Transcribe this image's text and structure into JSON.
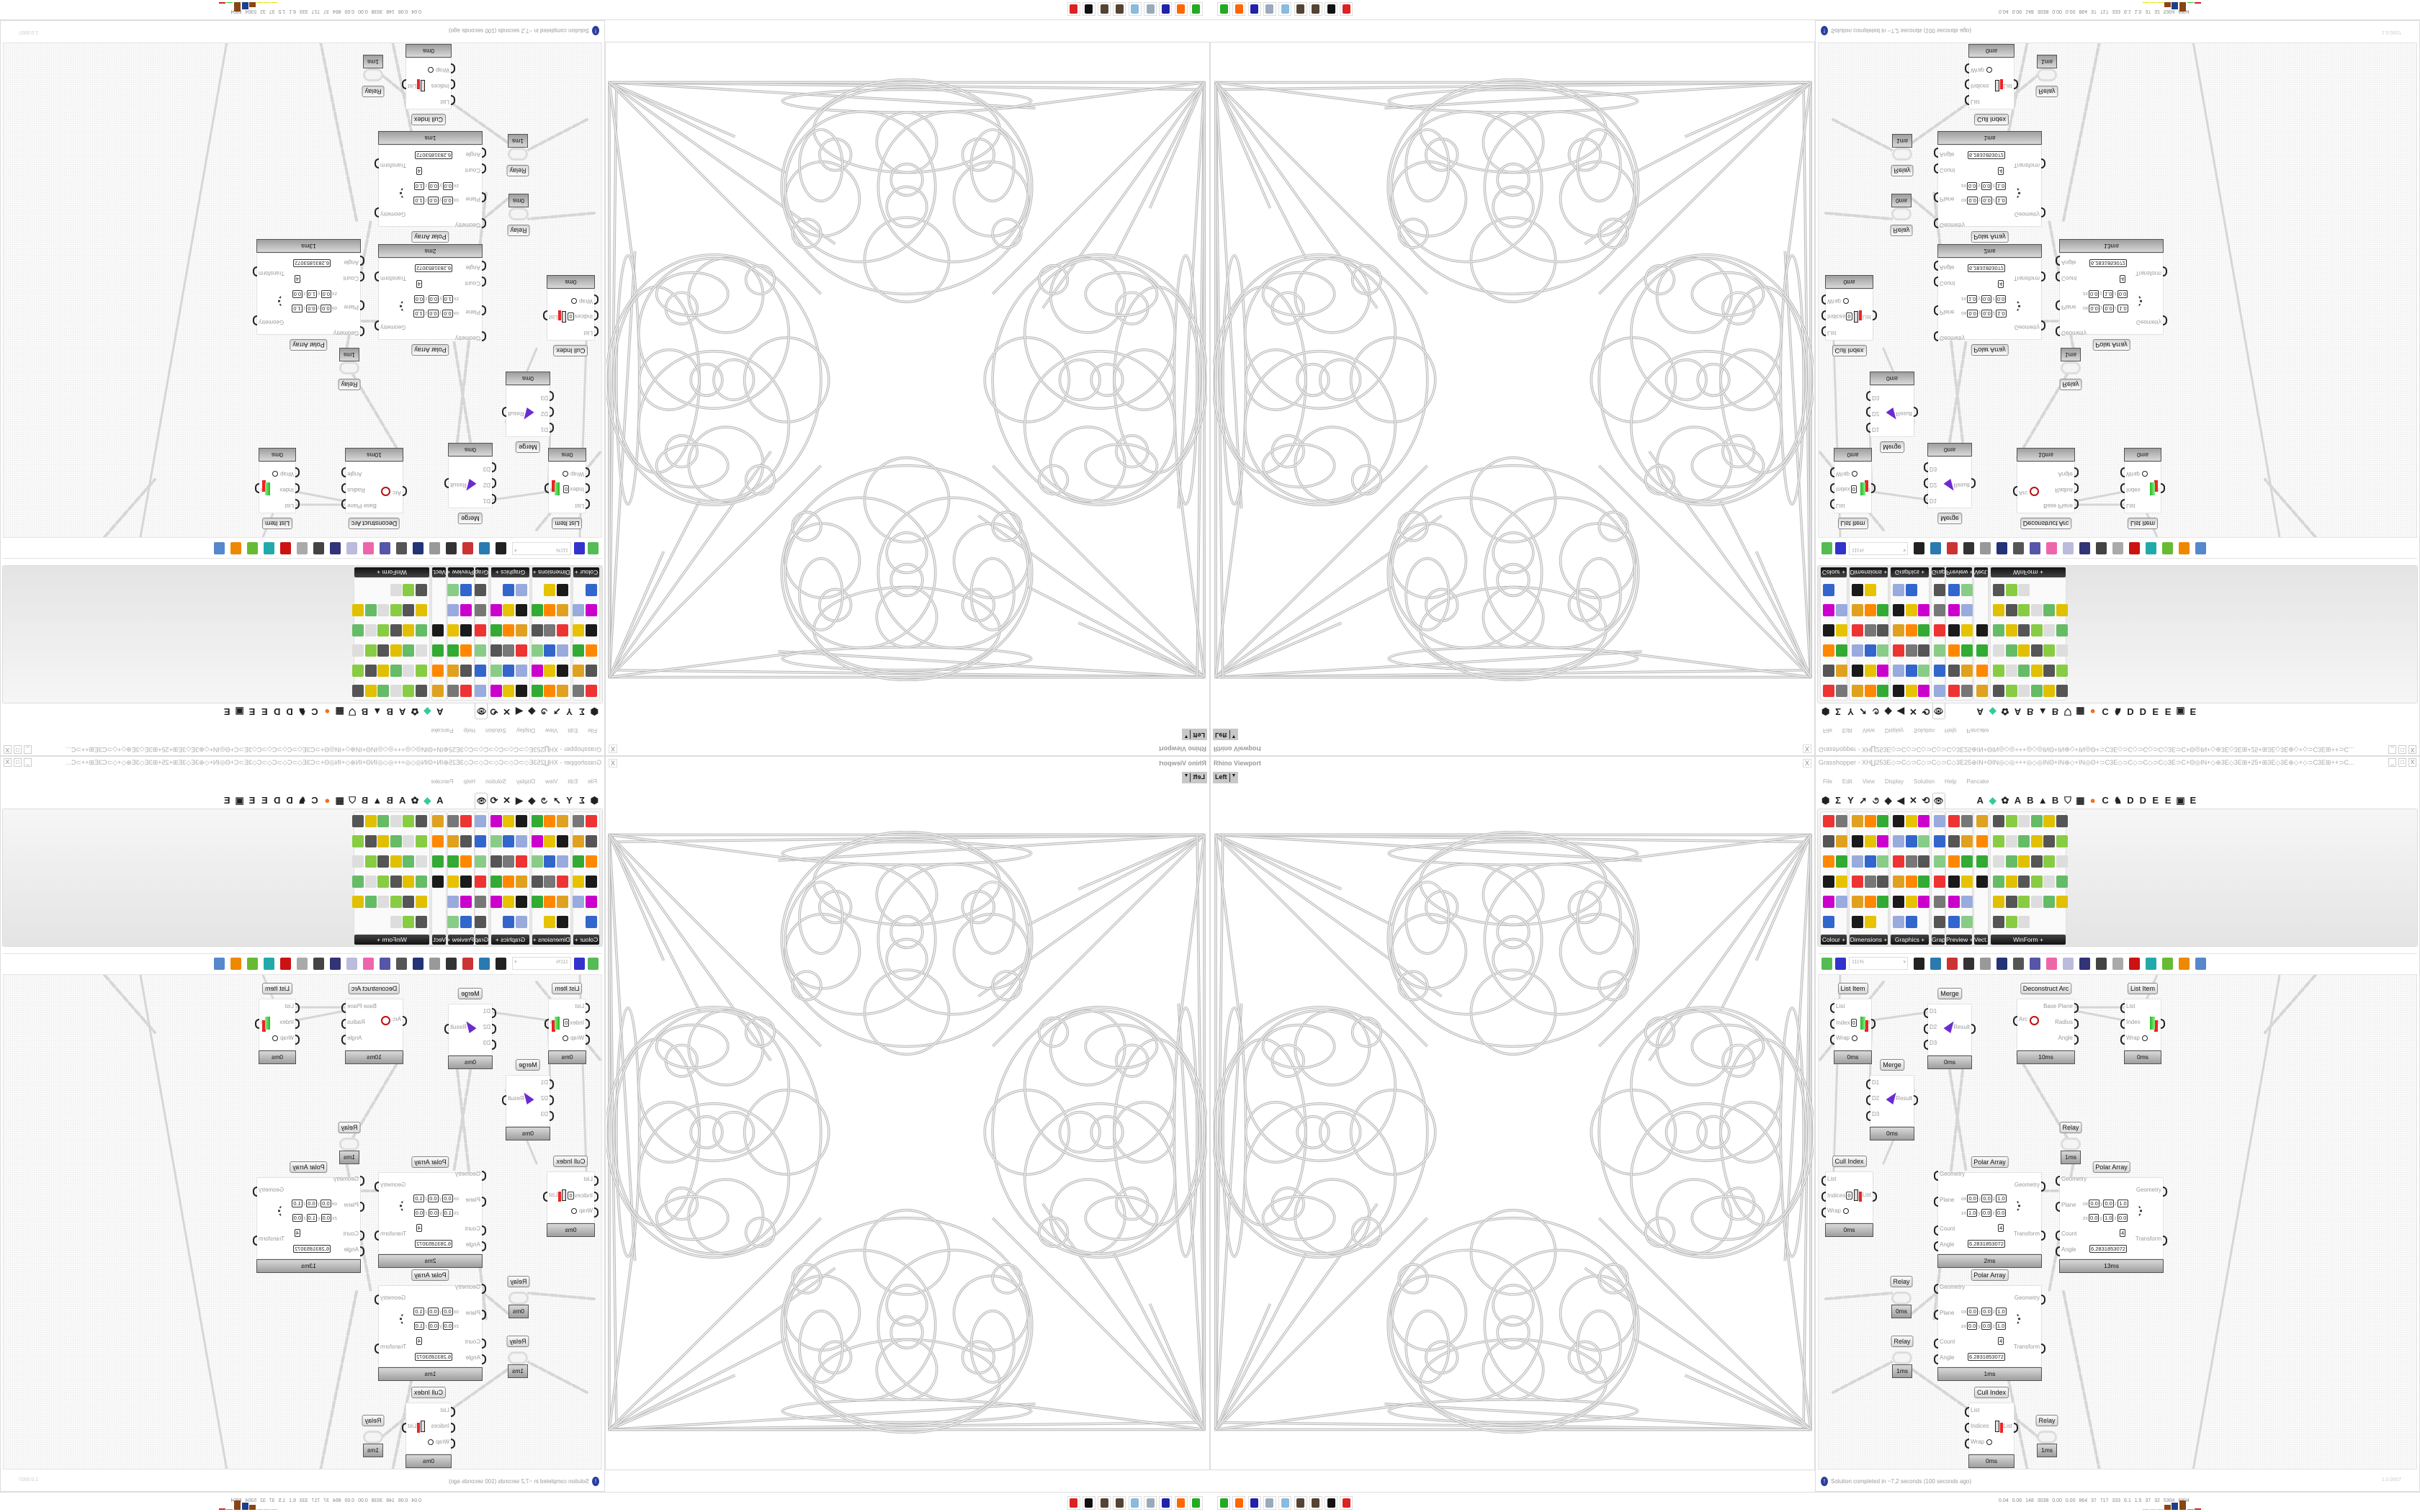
{
  "viewport": {
    "title": "Rhino Viewport",
    "close_label": "X",
    "view_name": "Left",
    "view_dropdown": "▼"
  },
  "grasshopper": {
    "title": "Grasshopper - XH∐253E◇⊃C◇⊃C◇⊃C◇⊃C◇3E25⊕IN+ΘIN◎◇◎+++◎◇◎INΘ+IN⊕◇+IN◎Θ+⊃C3E◇⊃C◇⊃C◇⊃C◇3E⊃C+Θ◎IN+◇⊕3E◇3E⊞+25+⊞3E◇3E⊕◇+◇⊃C3E⊞++⊃C...",
    "window_buttons": [
      "_",
      "□",
      "X"
    ],
    "menu": [
      "File",
      "Edit",
      "View",
      "Display",
      "Solution",
      "Help",
      "Pancake"
    ],
    "tabs": [
      {
        "icon": "params-icon",
        "glyph": "⬢"
      },
      {
        "icon": "maths-icon",
        "glyph": "Σ"
      },
      {
        "icon": "sets-icon",
        "glyph": "Y"
      },
      {
        "icon": "vector-icon",
        "glyph": "➚"
      },
      {
        "icon": "curve-icon",
        "glyph": "૭"
      },
      {
        "icon": "surface-icon",
        "glyph": "◆"
      },
      {
        "icon": "mesh-icon",
        "glyph": "◀"
      },
      {
        "icon": "intersect-icon",
        "glyph": "✕"
      },
      {
        "icon": "transform-icon",
        "glyph": "⟲"
      },
      {
        "icon": "display-eye-icon",
        "glyph": "👁",
        "active": true
      },
      {
        "icon": "plugin-a-icon",
        "glyph": "A"
      },
      {
        "icon": "green-gem-icon",
        "glyph": "◆"
      },
      {
        "icon": "flower-icon",
        "glyph": "✿"
      },
      {
        "icon": "plugin-a2-icon",
        "glyph": "A"
      },
      {
        "icon": "plugin-b-icon",
        "glyph": "B"
      },
      {
        "icon": "mountain-icon",
        "glyph": "▲"
      },
      {
        "icon": "plugin-b2-icon",
        "glyph": "B"
      },
      {
        "icon": "shield-icon",
        "glyph": "⛉"
      },
      {
        "icon": "grid-icon",
        "glyph": "▦"
      },
      {
        "icon": "orange-circle-icon",
        "glyph": "●"
      },
      {
        "icon": "plugin-c-icon",
        "glyph": "C"
      },
      {
        "icon": "bird-icon",
        "glyph": "♞"
      },
      {
        "icon": "plugin-d-icon",
        "glyph": "D"
      },
      {
        "icon": "plugin-d2-icon",
        "glyph": "D"
      },
      {
        "icon": "plugin-e-icon",
        "glyph": "E"
      },
      {
        "icon": "plugin-e2-icon",
        "glyph": "E"
      },
      {
        "icon": "chip-icon",
        "glyph": "▣"
      },
      {
        "icon": "plugin-e3-icon",
        "glyph": "E"
      }
    ],
    "ribbon_groups": [
      {
        "label": "Colour +",
        "cols": 2,
        "rows": 6,
        "count": 11
      },
      {
        "label": "Dimensions +",
        "cols": 3,
        "rows": 6,
        "count": 17
      },
      {
        "label": "Graphics +",
        "cols": 3,
        "rows": 6,
        "count": 17
      },
      {
        "label": "Grap..",
        "cols": 1,
        "rows": 6,
        "count": 6
      },
      {
        "label": "Preview +",
        "cols": 2,
        "rows": 6,
        "count": 12
      },
      {
        "label": "Vect..",
        "cols": 1,
        "rows": 4,
        "count": 4
      },
      {
        "label": "WinForm +",
        "cols": 6,
        "rows": 6,
        "count": 33
      }
    ],
    "toolbar": {
      "zoom": "111%",
      "icons": [
        "open-file-icon",
        "save-file-icon",
        "zoom-extents-icon",
        "preview-eye-icon",
        "sketch-icon",
        "bifocals-icon",
        "email-icon",
        "gha-icon",
        "canvas-icon",
        "search-icon",
        "package-icon",
        "bulb-icon",
        "wires-icon",
        "helmet-icon",
        "ring-icon",
        "red-gem-icon",
        "teal-icon",
        "green-icon",
        "sphere-icon",
        "blue-gem-icon"
      ]
    },
    "canvas": {
      "plane_labels": {
        "o": "o",
        "z": "z",
        "x": "x",
        "y": "y",
        "zz": "z"
      },
      "nodes": {
        "list_item_1": {
          "title": "List Item",
          "inputs": [
            "List",
            "Index",
            "Wrap"
          ],
          "outputs": [
            "i"
          ],
          "index_value": "0",
          "time": "0ms"
        },
        "merge_1": {
          "title": "Merge",
          "inputs": [
            "D1",
            "D2",
            "D3"
          ],
          "outputs": [
            "Result"
          ],
          "time": "0ms"
        },
        "merge_2": {
          "title": "Merge",
          "inputs": [
            "D1",
            "D2",
            "D3"
          ],
          "outputs": [
            "Result"
          ],
          "time": "0ms"
        },
        "deconstruct_arc": {
          "title": "Deconstruct Arc",
          "inputs": [
            "Arc"
          ],
          "outputs": [
            "Base Plane",
            "Radius",
            "Angle"
          ],
          "time": "10ms"
        },
        "list_item_2": {
          "title": "List Item",
          "inputs": [
            "List",
            "Index",
            "Wrap"
          ],
          "outputs": [
            "i"
          ],
          "time": "0ms"
        },
        "relay_1": {
          "title": "Relay",
          "time": "1ms"
        },
        "cull_index_1": {
          "title": "Cull Index",
          "inputs": [
            "List",
            "Indices",
            "Wrap"
          ],
          "outputs": [
            "List"
          ],
          "index_value": "0",
          "time": "0ms"
        },
        "polar_array_1": {
          "title": "Polar Array",
          "inputs": [
            "Geometry",
            "Plane",
            "Count",
            "Angle"
          ],
          "outputs": [
            "Geometry",
            "Transform"
          ],
          "plane_o": [
            "0.0",
            "0.0",
            "1.0"
          ],
          "plane_z": [
            "1.0",
            "0.0",
            "0.0"
          ],
          "count": "4",
          "angle": "6.2831853072",
          "time": "2ms"
        },
        "polar_array_2": {
          "title": "Polar Array",
          "inputs": [
            "Geometry",
            "Plane",
            "Count",
            "Angle"
          ],
          "outputs": [
            "Geometry",
            "Transform"
          ],
          "plane_o": [
            "0.0",
            "0.0",
            "1.0"
          ],
          "plane_z": [
            "0.0",
            "1.0",
            "0.0"
          ],
          "count": "4",
          "angle": "6.2831853072",
          "time": "13ms"
        },
        "relay_2": {
          "title": "Relay",
          "time": "0ms"
        },
        "relay_3": {
          "title": "Relay",
          "time": "1ms"
        },
        "polar_array_3": {
          "title": "Polar Array",
          "inputs": [
            "Geometry",
            "Plane",
            "Count",
            "Angle"
          ],
          "outputs": [
            "Geometry",
            "Transform"
          ],
          "plane_o": [
            "0.0",
            "0.0",
            "1.0"
          ],
          "plane_z": [
            "0.0",
            "0.0",
            "1.0"
          ],
          "count": "4",
          "angle": "6.2831853072",
          "time": "1ms"
        },
        "cull_index_2": {
          "title": "Cull Index",
          "inputs": [
            "List",
            "Indices",
            "Wrap"
          ],
          "outputs": [
            "List"
          ],
          "time": "0ms"
        },
        "relay_4": {
          "title": "Relay",
          "time": "1ms"
        }
      }
    },
    "status": {
      "message": "Solution completed in ~7,2 seconds (100 seconds ago)",
      "version": "1.0.0007",
      "icon": "info-icon"
    }
  },
  "taskbar": {
    "apps": [
      "terminal-icon",
      "firefox-icon",
      "save64-icon",
      "scroll-icon",
      "notepad-icon",
      "gear-icon",
      "gear2-icon",
      "wolf-icon",
      "red-app-icon"
    ],
    "stats": "0.04 0.06 148 3038 0.00 0.00 864 37 717 333 6.1 1.5 37 32 5304 6804",
    "colors": {
      "brown": "#8b4513",
      "blue": "#1e3f8a",
      "yellow": "#e8e000",
      "green": "#33cc33",
      "red": "#cc2222"
    }
  }
}
